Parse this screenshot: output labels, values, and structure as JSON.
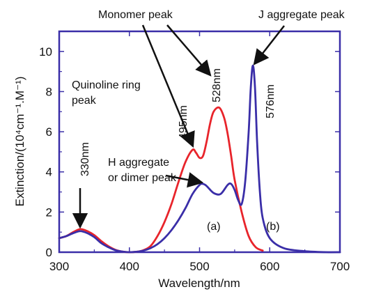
{
  "chart_data": {
    "type": "line",
    "title": "",
    "xlabel": "Wavelength/nm",
    "ylabel": "Extinction/(10⁴cm⁻¹.M⁻¹)",
    "xlim": [
      300,
      700
    ],
    "ylim": [
      0,
      11
    ],
    "xticks": [
      "300",
      "400",
      "500",
      "600",
      "700"
    ],
    "yticks": [
      "0",
      "2",
      "4",
      "6",
      "8",
      "10"
    ],
    "grid": false,
    "series": [
      {
        "name": "(a)",
        "color": "#e8242b",
        "x": [
          300,
          310,
          320,
          330,
          340,
          350,
          360,
          370,
          380,
          390,
          400,
          410,
          420,
          430,
          440,
          450,
          460,
          470,
          480,
          490,
          495,
          500,
          505,
          510,
          515,
          520,
          528,
          535,
          540,
          545,
          550,
          560,
          570,
          580,
          590
        ],
        "y": [
          0.7,
          0.8,
          1.0,
          1.15,
          1.05,
          0.85,
          0.55,
          0.3,
          0.12,
          0.03,
          0.0,
          0.02,
          0.1,
          0.3,
          0.8,
          1.5,
          2.4,
          3.5,
          4.5,
          5.1,
          4.95,
          4.7,
          4.8,
          5.5,
          6.4,
          7.0,
          7.2,
          6.7,
          5.9,
          4.8,
          3.6,
          2.0,
          0.8,
          0.25,
          0.08
        ]
      },
      {
        "name": "(b)",
        "color": "#3a2ea8",
        "x": [
          300,
          310,
          320,
          330,
          340,
          350,
          360,
          370,
          380,
          390,
          400,
          410,
          420,
          430,
          440,
          450,
          460,
          470,
          480,
          490,
          500,
          505,
          510,
          520,
          530,
          540,
          545,
          550,
          555,
          560,
          565,
          570,
          573,
          576,
          579,
          582,
          586,
          590,
          600,
          620,
          650,
          680,
          700
        ],
        "y": [
          0.7,
          0.8,
          0.95,
          1.05,
          0.95,
          0.75,
          0.45,
          0.25,
          0.1,
          0.03,
          0.0,
          0.02,
          0.08,
          0.2,
          0.4,
          0.7,
          1.1,
          1.6,
          2.2,
          2.9,
          3.35,
          3.4,
          3.3,
          2.95,
          2.9,
          3.35,
          3.4,
          3.1,
          2.6,
          2.4,
          3.5,
          6.0,
          8.2,
          9.3,
          8.2,
          5.5,
          3.0,
          1.7,
          0.7,
          0.2,
          0.05,
          0.0,
          0.0
        ]
      }
    ],
    "annotations": {
      "monomer_peak": "Monomer peak",
      "j_aggregate_peak": "J aggregate peak",
      "quinoline_line1": "Quinoline ring",
      "quinoline_line2": "peak",
      "h_aggregate_line1": "H aggregate",
      "h_aggregate_line2": "or dimer peak",
      "nm330": "330nm",
      "nm495": "495nm",
      "nm528": "528nm",
      "nm576": "576nm",
      "label_a": "(a)",
      "label_b": "(b)"
    }
  }
}
